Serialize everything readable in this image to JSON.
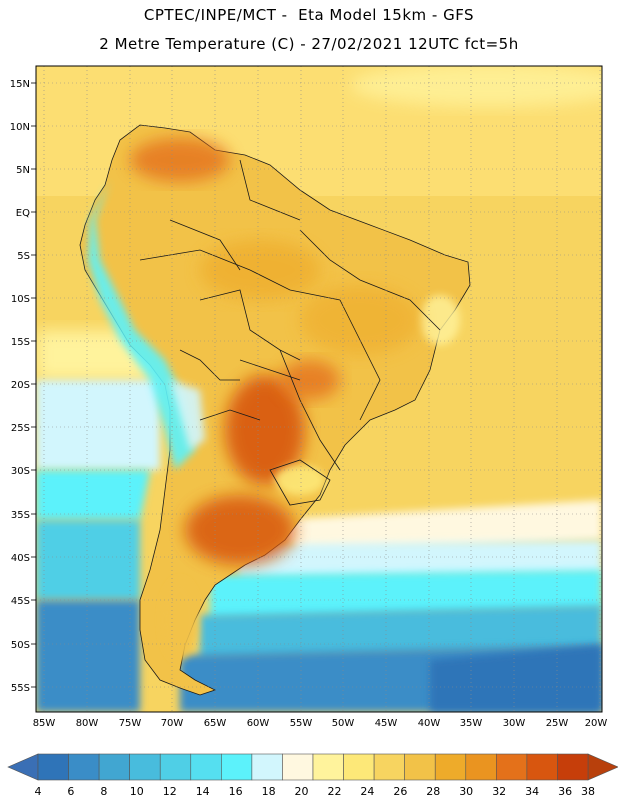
{
  "header": {
    "line1": "CPTEC/INPE/MCT -  Eta Model 15km - GFS",
    "line2": "2 Metre Temperature (C) - 27/02/2021 12UTC fct=5h"
  },
  "axes": {
    "lat_labels": [
      "15N",
      "10N",
      "5N",
      "EQ",
      "5S",
      "10S",
      "15S",
      "20S",
      "25S",
      "30S",
      "35S",
      "40S",
      "45S",
      "50S",
      "55S"
    ],
    "lon_labels": [
      "85W",
      "80W",
      "75W",
      "70W",
      "65W",
      "60W",
      "55W",
      "50W",
      "45W",
      "40W",
      "35W",
      "30W",
      "25W",
      "20W"
    ]
  },
  "colorbar": {
    "ticks": [
      "4",
      "6",
      "8",
      "10",
      "12",
      "14",
      "16",
      "18",
      "20",
      "22",
      "24",
      "26",
      "28",
      "30",
      "32",
      "34",
      "36",
      "38"
    ],
    "low_color": "#3a6fb5",
    "high_color": "#b8400c",
    "colors": [
      "#2f74b8",
      "#3a8dc7",
      "#41a6d1",
      "#48bcdd",
      "#4fcfe6",
      "#55dff0",
      "#5cf2fb",
      "#d2f6fd",
      "#fff8e0",
      "#fff39c",
      "#fde878",
      "#f7d460",
      "#f2c248",
      "#eeab2a",
      "#ea9420",
      "#e4711a",
      "#d8560f",
      "#c63e0a"
    ]
  },
  "map": {
    "domain": "South America",
    "variable": "2 m temperature"
  }
}
